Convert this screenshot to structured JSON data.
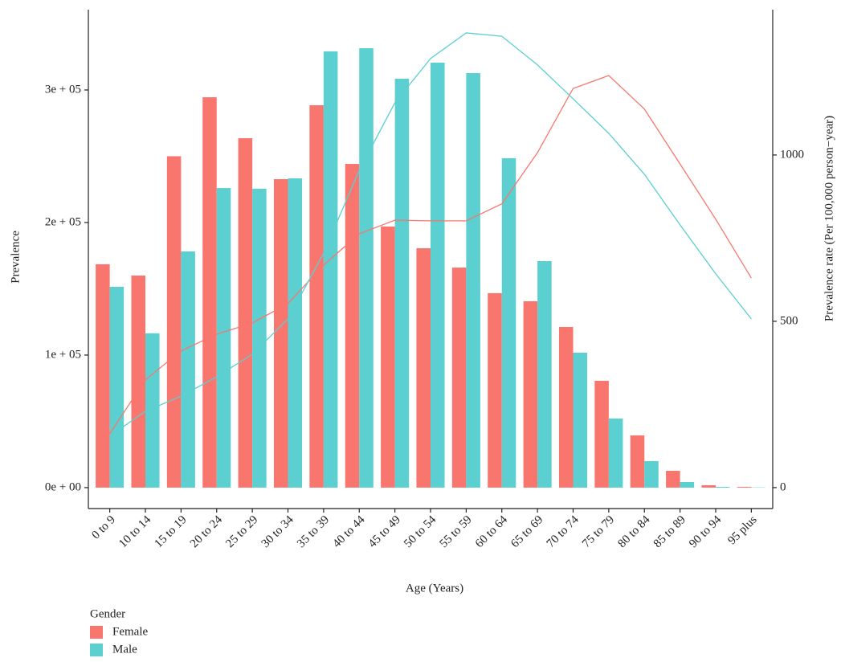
{
  "chart_data": {
    "type": "bar_line",
    "x_label": "Age (Years)",
    "y_label": "Prevalence",
    "y2_label": "Prevalence rate (Per 100,000 person−year)",
    "legend_title": "Gender",
    "categories": [
      "0 to 9",
      "10 to 14",
      "15 to 19",
      "20 to 24",
      "25 to 29",
      "30 to 34",
      "35 to 39",
      "40 to 44",
      "45 to 49",
      "50 to 54",
      "55 to 59",
      "60 to 64",
      "65 to 69",
      "70 to 74",
      "75 to 79",
      "80 to 84",
      "85 to 89",
      "90 to 94",
      "95 plus"
    ],
    "series": [
      {
        "name": "Female",
        "color": "#F8766D",
        "values": [
          168500,
          160000,
          250000,
          294500,
          263600,
          232700,
          288500,
          244200,
          197000,
          180600,
          166000,
          146700,
          140600,
          121200,
          80600,
          39400,
          12700,
          1800,
          600
        ],
        "rate_values": [
          162,
          324,
          411,
          461,
          495,
          553,
          669,
          763,
          804,
          802,
          802,
          853,
          1007,
          1200,
          1239,
          1138,
          973,
          807,
          630
        ]
      },
      {
        "name": "Male",
        "color": "#5CCFD1",
        "values": [
          151500,
          116400,
          178200,
          226000,
          225500,
          233300,
          329100,
          331500,
          308500,
          320600,
          312700,
          248500,
          170900,
          101800,
          52100,
          20000,
          4200,
          600,
          200
        ],
        "rate_values": [
          155,
          229,
          275,
          333,
          401,
          507,
          705,
          954,
          1157,
          1290,
          1367,
          1357,
          1271,
          1169,
          1065,
          942,
          790,
          643,
          507
        ]
      }
    ],
    "ylim": [
      -15800,
      360600
    ],
    "yticks": [
      {
        "value": 0,
        "label": "0e + 00"
      },
      {
        "value": 100000,
        "label": "1e + 05"
      },
      {
        "value": 200000,
        "label": "2e + 05"
      },
      {
        "value": 300000,
        "label": "3e + 05"
      }
    ],
    "y2lim": [
      -63,
      1437
    ],
    "y2ticks": [
      0,
      500,
      1000
    ]
  }
}
